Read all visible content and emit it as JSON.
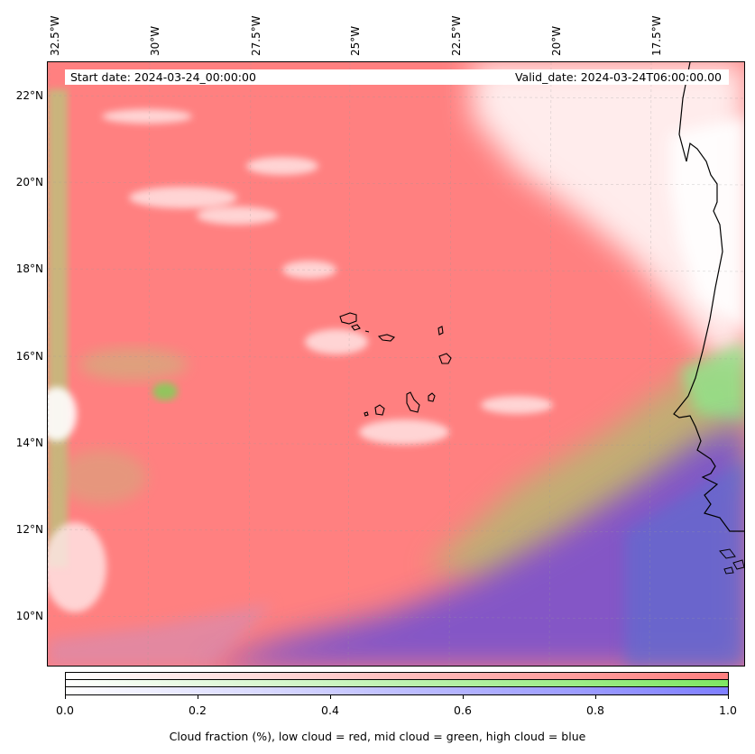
{
  "header": {
    "start_date": "Start date: 2024-03-24_00:00:00",
    "valid_date": "Valid_date: 2024-03-24T06:00:00.00"
  },
  "longitude_labels": [
    "32.5°W",
    "30°W",
    "27.5°W",
    "25°W",
    "22.5°W",
    "20°W",
    "17.5°W"
  ],
  "latitude_labels": [
    "22°N",
    "20°N",
    "18°N",
    "16°N",
    "14°N",
    "12°N",
    "10°N"
  ],
  "colors": {
    "low_cloud": "#ff7f7f",
    "mid_cloud": "#7fe663",
    "high_cloud": "#7f7fff",
    "coastline": "#000000"
  },
  "colorbar": {
    "ticks": [
      "0.0",
      "0.2",
      "0.4",
      "0.6",
      "0.8",
      "1.0"
    ],
    "label": "Cloud fraction (%), low cloud = red, mid cloud = green, high cloud = blue"
  }
}
